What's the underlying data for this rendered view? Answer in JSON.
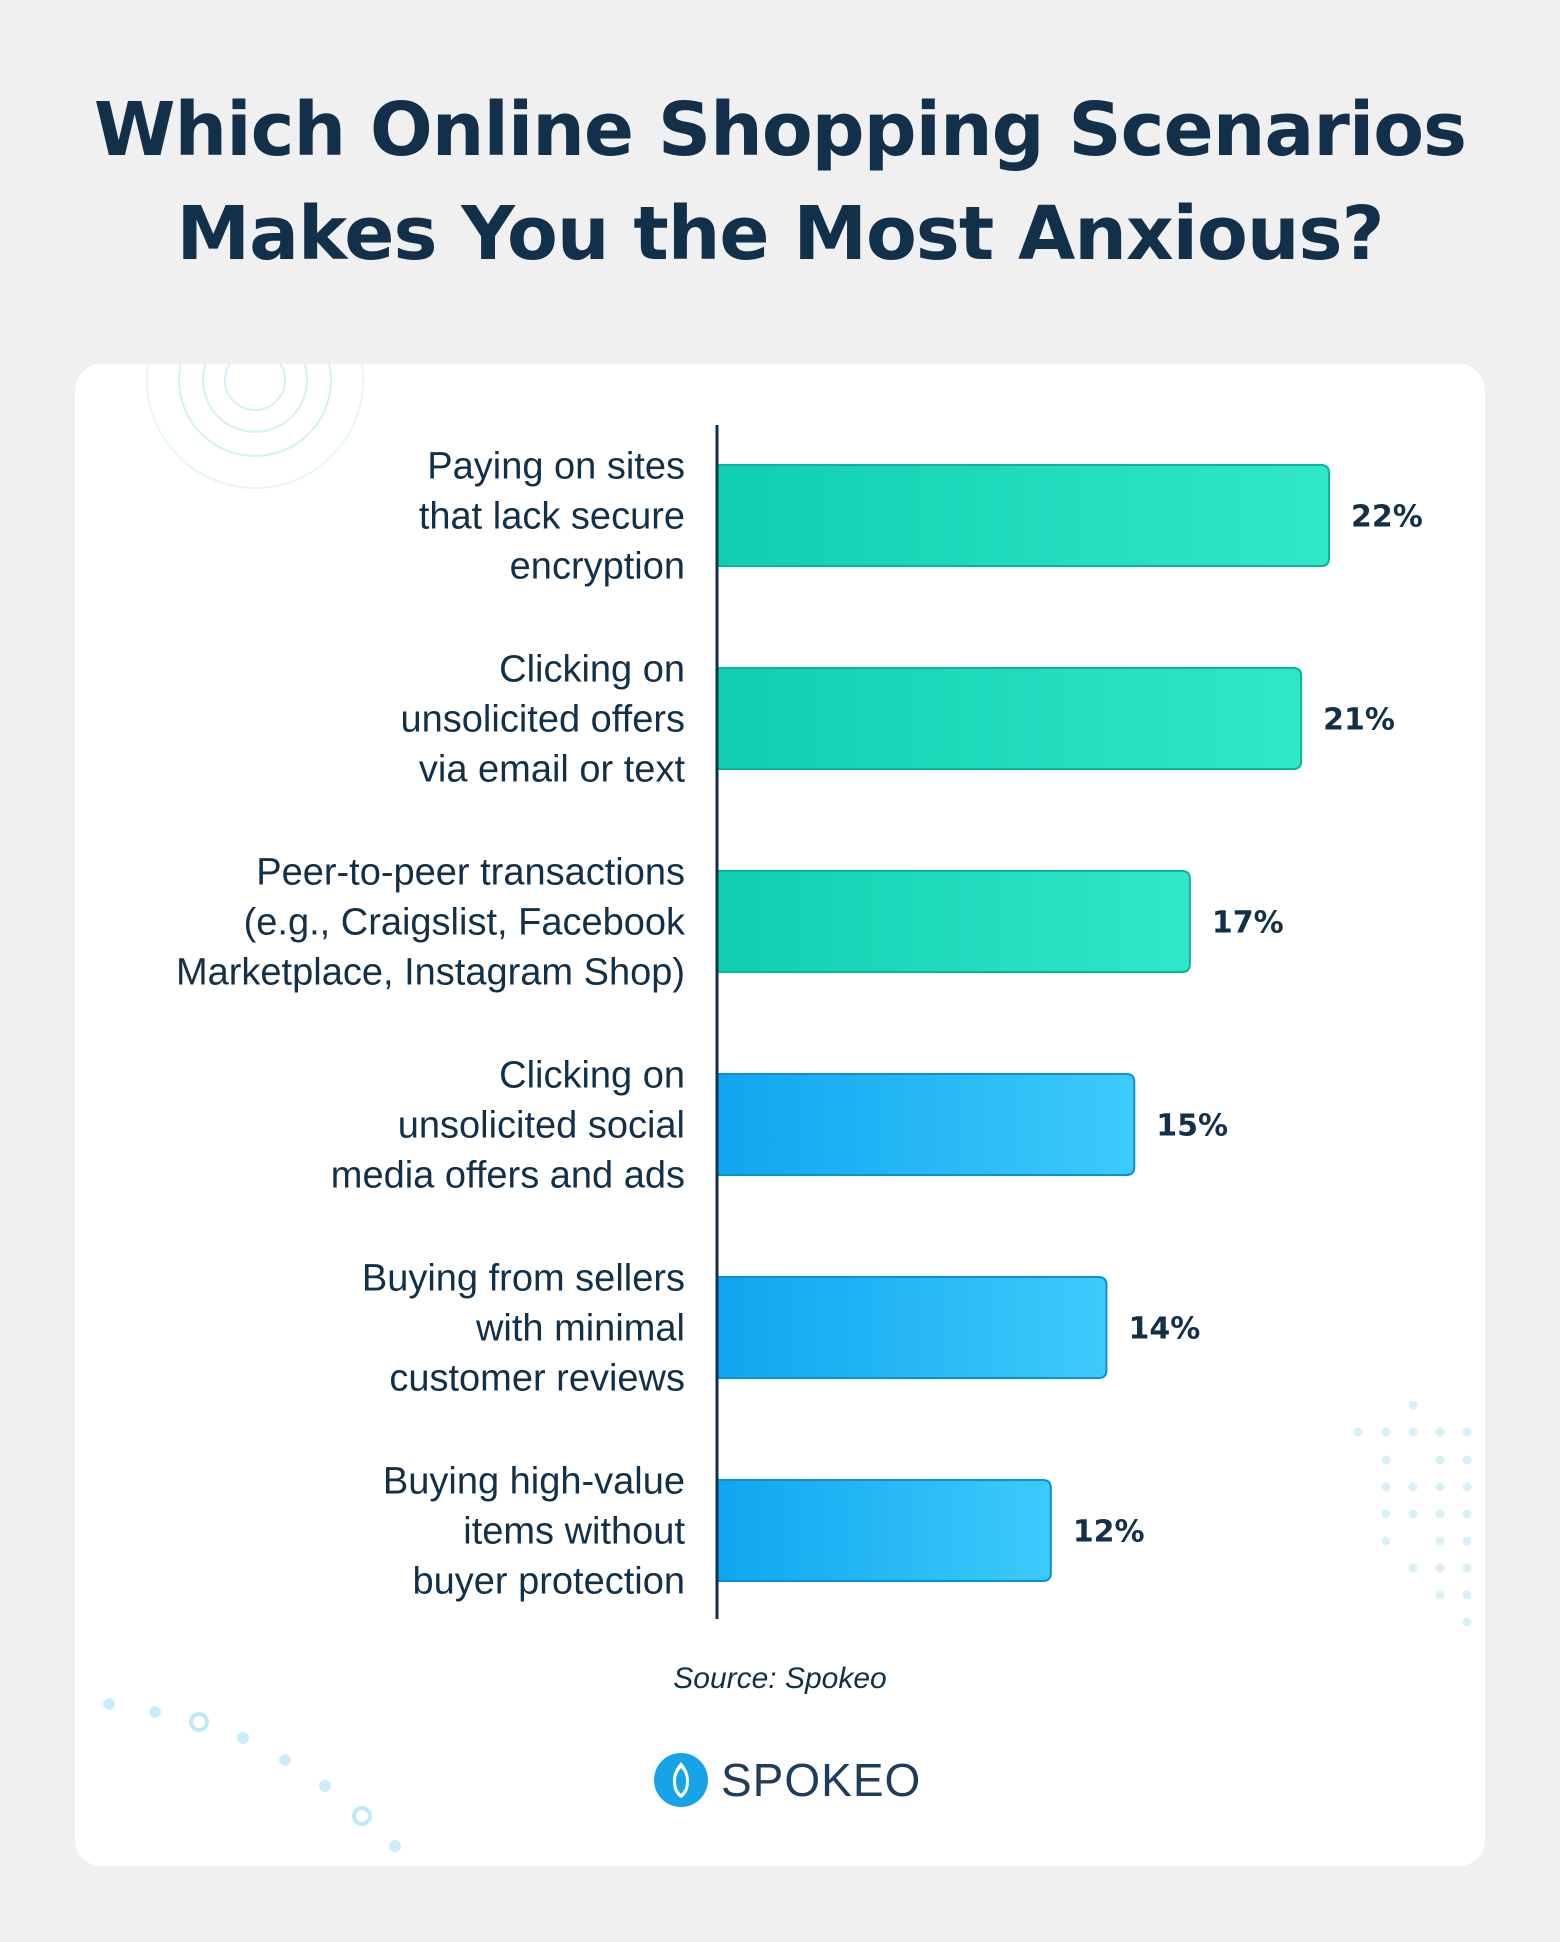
{
  "title_lines": [
    "Which Online Shopping Scenarios",
    "Makes You the Most Anxious?"
  ],
  "chart_data": {
    "type": "bar",
    "orientation": "horizontal",
    "title": "Which Online Shopping Scenarios Makes You the Most Anxious?",
    "xlabel": "",
    "ylabel": "",
    "xlim": [
      0,
      22
    ],
    "grid": false,
    "categories": [
      [
        "Paying on sites",
        "that lack secure",
        "encryption"
      ],
      [
        "Clicking on",
        "unsolicited offers",
        "via email or text"
      ],
      [
        "Peer-to-peer transactions",
        "(e.g., Craigslist, Facebook",
        "Marketplace, Instagram Shop)"
      ],
      [
        "Clicking on",
        "unsolicited social",
        "media offers and ads"
      ],
      [
        "Buying from sellers",
        "with minimal",
        "customer reviews"
      ],
      [
        "Buying high-value",
        "items without",
        "buyer protection"
      ]
    ],
    "values": [
      22,
      21,
      17,
      15,
      14,
      12
    ],
    "value_labels": [
      "22%",
      "21%",
      "17%",
      "15%",
      "14%",
      "12%"
    ],
    "bar_colors": [
      "green",
      "green",
      "green",
      "blue",
      "blue",
      "blue"
    ]
  },
  "colors": {
    "title": "#13304a",
    "green_start": "#0fcfb0",
    "green_end": "#30e8c9",
    "green_stroke": "#0bb597",
    "blue_start": "#10a6ef",
    "blue_end": "#3ccbfb",
    "blue_stroke": "#0b8fd8",
    "axis": "#13304a"
  },
  "source": "Source: Spokeo",
  "logo_text": "SPOKEO"
}
